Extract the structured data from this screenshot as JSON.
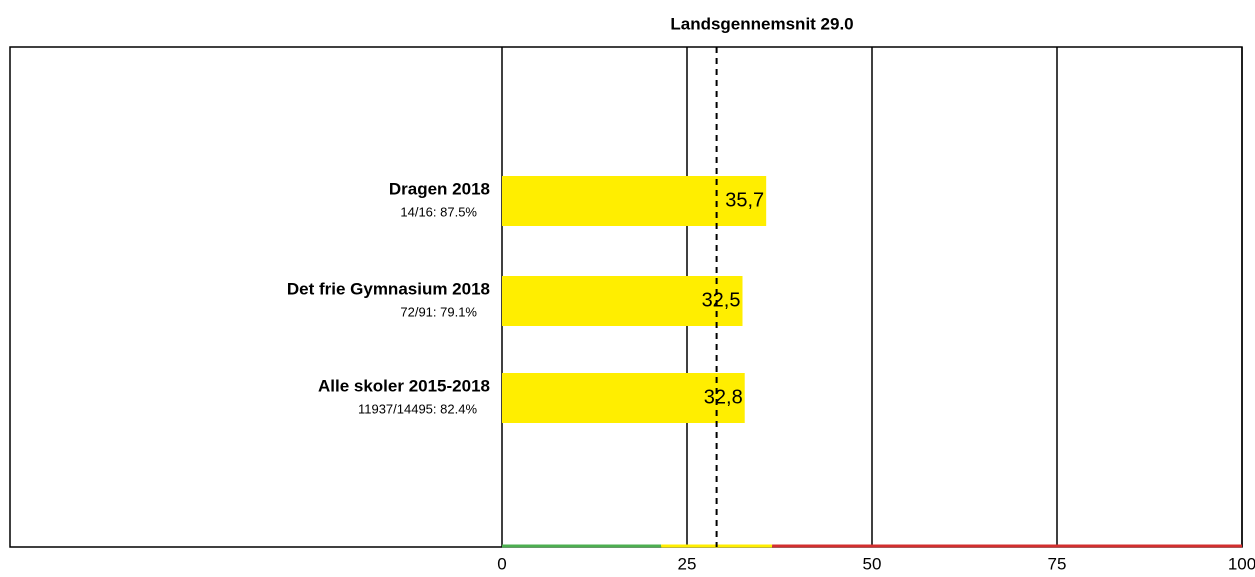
{
  "chart_data": {
    "type": "hbar",
    "title": "Landsgennemsnit 29.0",
    "categories": [
      "Dragen 2018",
      "Det frie Gymnasium 2018",
      "Alle skoler 2015-2018"
    ],
    "details": [
      "14/16: 87.5%",
      "72/91: 79.1%",
      "11937/14495: 82.4%"
    ],
    "values": [
      35.7,
      32.5,
      32.8
    ],
    "value_labels": [
      "35,7",
      "32,5",
      "32,8"
    ],
    "color": "#ffee00",
    "xlim": [
      0,
      100
    ],
    "xticks": [
      0,
      25,
      50,
      75,
      100
    ],
    "grid": true,
    "reference_line": 29,
    "bands": [
      {
        "from": 0,
        "to": 21.5,
        "color": "#4caf50"
      },
      {
        "from": 21.5,
        "to": 36.5,
        "color": "#ffee00"
      },
      {
        "from": 36.5,
        "to": 100,
        "color": "#d32f2f"
      }
    ]
  }
}
